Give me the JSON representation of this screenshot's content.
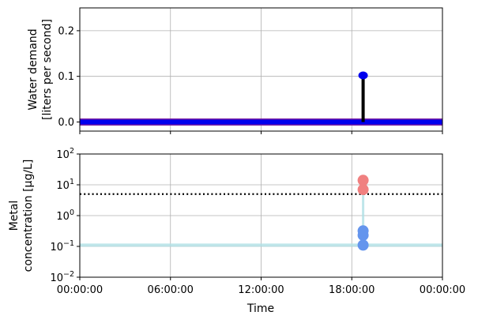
{
  "chart_data": [
    {
      "type": "line",
      "ylabel_line1": "Water demand",
      "ylabel_line2": "[liters per second]",
      "ylim": [
        -0.02,
        0.25
      ],
      "yticks": [
        0.0,
        0.1,
        0.2
      ],
      "ytick_labels": [
        "0.0",
        "0.1",
        "0.2"
      ],
      "xlim_hours": [
        0,
        24
      ],
      "xticks_hours": [
        0,
        6,
        12,
        18,
        24
      ],
      "grid": true,
      "baseline": {
        "value": 0.0,
        "color": "#0000ee",
        "edge_color": "#7b1fa2"
      },
      "stem": {
        "x_hours": 18.75,
        "value": 0.102,
        "line_color": "#000000",
        "marker_color": "#0000ee"
      }
    },
    {
      "type": "scatter",
      "ylabel_line1": "Metal",
      "ylabel_line2": "concentration [μg/L]",
      "yscale": "log",
      "ylim": [
        0.01,
        100
      ],
      "yticks": [
        0.01,
        0.1,
        1,
        10,
        100
      ],
      "ytick_labels": [
        {
          "base": "10",
          "exp": "−2"
        },
        {
          "base": "10",
          "exp": "−1"
        },
        {
          "base": "10",
          "exp": "0"
        },
        {
          "base": "10",
          "exp": "1"
        },
        {
          "base": "10",
          "exp": "2"
        }
      ],
      "xlabel": "Time",
      "xlim_hours": [
        0,
        24
      ],
      "xticks_hours": [
        0,
        6,
        12,
        18,
        24
      ],
      "xtick_labels": [
        "00:00:00",
        "06:00:00",
        "12:00:00",
        "18:00:00",
        "00:00:00"
      ],
      "grid": true,
      "background_line": {
        "value": 0.11,
        "color": "#b0e0e6"
      },
      "threshold": {
        "value": 5,
        "color": "#000000",
        "style": "dotted"
      },
      "series": [
        {
          "color": "#6495ed",
          "points": [
            {
              "x_hours": 18.75,
              "y": 0.11
            },
            {
              "x_hours": 18.75,
              "y": 0.23
            },
            {
              "x_hours": 18.75,
              "y": 0.32
            }
          ]
        },
        {
          "color": "#f08080",
          "points": [
            {
              "x_hours": 18.75,
              "y": 7
            },
            {
              "x_hours": 18.75,
              "y": 14
            }
          ]
        }
      ]
    }
  ]
}
